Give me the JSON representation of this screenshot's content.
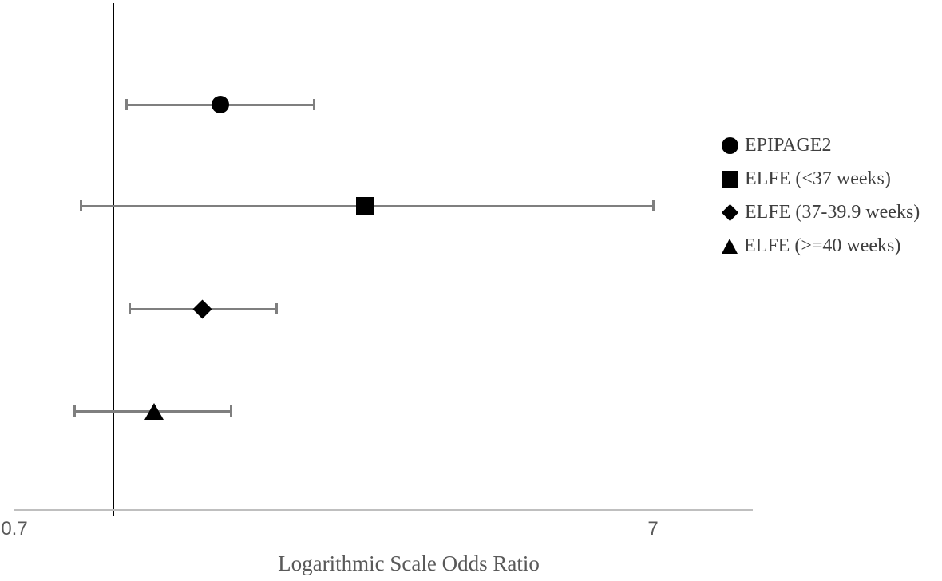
{
  "chart_data": {
    "type": "forest",
    "title": "",
    "xlabel": "Logarithmic Scale Odds Ratio",
    "x_scale": "log",
    "xlim": [
      0.7,
      10
    ],
    "x_ticks": [
      0.7,
      7
    ],
    "x_tick_labels": [
      "0.7",
      "7"
    ],
    "reference_line": 1.0,
    "legend_position": "right",
    "grid": false,
    "series": [
      {
        "name": "EPIPAGE2",
        "marker": "circle",
        "or": 1.47,
        "ci_low": 1.05,
        "ci_high": 2.06
      },
      {
        "name": "ELFE (<37 weeks)",
        "marker": "square",
        "or": 2.48,
        "ci_low": 0.89,
        "ci_high": 7.0
      },
      {
        "name": "ELFE (37-39.9 weeks)",
        "marker": "diamond",
        "or": 1.38,
        "ci_low": 1.06,
        "ci_high": 1.8
      },
      {
        "name": "ELFE (>=40 weeks)",
        "marker": "triangle",
        "or": 1.16,
        "ci_low": 0.87,
        "ci_high": 1.53
      }
    ]
  },
  "colors": {
    "marker": "#000000",
    "ci_bar": "#7f7f7f",
    "axis_line": "#bfbfbf",
    "reference_line": "#000000",
    "tick_label": "#595959",
    "axis_title": "#595959",
    "legend_text": "#3f3f3f",
    "background": "#ffffff"
  }
}
